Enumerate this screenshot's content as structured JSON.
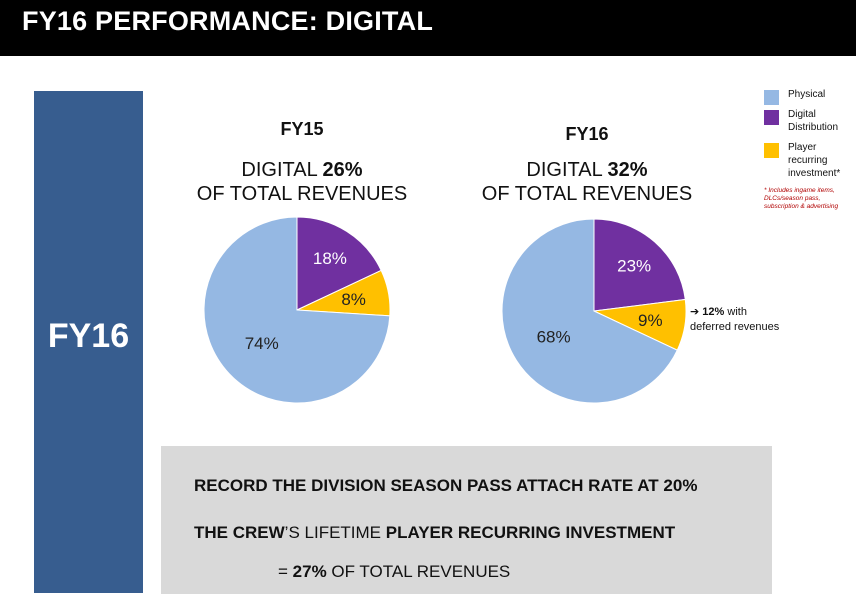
{
  "slide": {
    "title": "FY16 PERFORMANCE: DIGITAL",
    "side_label": "FY16"
  },
  "charts": [
    {
      "year": "FY15",
      "subtitle_pre": "DIGITAL ",
      "subtitle_value": "26%",
      "subtitle_post": "OF TOTAL REVENUES"
    },
    {
      "year": "FY16",
      "subtitle_pre": "DIGITAL ",
      "subtitle_value": "32%",
      "subtitle_post": "OF TOTAL REVENUES"
    }
  ],
  "chart_data": [
    {
      "type": "pie",
      "title": "FY15",
      "labels": [
        "Physical",
        "Digital Distribution",
        "Player recurring investment*"
      ],
      "values": [
        74,
        18,
        8
      ],
      "data_labels": [
        "74%",
        "18%",
        "8%"
      ],
      "colors": [
        "#95b8e3",
        "#7030a0",
        "#ffc000"
      ]
    },
    {
      "type": "pie",
      "title": "FY16",
      "labels": [
        "Physical",
        "Digital Distribution",
        "Player recurring investment*"
      ],
      "values": [
        68,
        23,
        9
      ],
      "data_labels": [
        "68%",
        "23%",
        "9%"
      ],
      "colors": [
        "#95b8e3",
        "#7030a0",
        "#ffc000"
      ]
    }
  ],
  "legend": {
    "items": [
      {
        "label": "Physical",
        "color": "#95b8e3"
      },
      {
        "label": "Digital Distribution",
        "color": "#7030a0"
      },
      {
        "label": "Player recurring investment*",
        "color": "#ffc000"
      }
    ],
    "footnote": "* Includes ingame items, DLCs/season pass, subscription & advertising"
  },
  "annotation": {
    "arrow": "➔",
    "value": "12%",
    "text_1": " with",
    "text_2": "deferred revenues"
  },
  "summary": {
    "line1": "RECORD THE DIVISION SEASON PASS ATTACH RATE AT 20%",
    "line2_a": "THE CREW",
    "line2_b": "’S LIFETIME ",
    "line2_c": "PLAYER RECURRING INVESTMENT",
    "line3_a": "= ",
    "line3_b": "27%",
    "line3_c": " OF TOTAL  REVENUES"
  }
}
